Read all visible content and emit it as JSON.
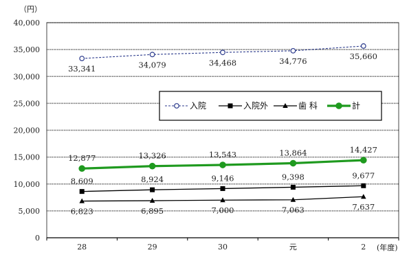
{
  "chart_data": {
    "type": "line",
    "unit_label": "（円）",
    "x_unit_label": "(年度)",
    "categories": [
      "28",
      "29",
      "30",
      "元",
      "2"
    ],
    "ylim": [
      0,
      40000
    ],
    "yticks": [
      0,
      5000,
      10000,
      15000,
      20000,
      25000,
      30000,
      35000,
      40000
    ],
    "ytick_labels": [
      "0",
      "5,000",
      "10,000",
      "15,000",
      "20,000",
      "25,000",
      "30,000",
      "35,000",
      "40,000"
    ],
    "grid": true,
    "legend_position": "right",
    "series": [
      {
        "key": "inpatient",
        "name": "入院",
        "values": [
          33341,
          34079,
          34468,
          34776,
          35660
        ],
        "labels": [
          "33,341",
          "34,079",
          "34,468",
          "34,776",
          "35,660"
        ],
        "label_position": "below",
        "color": "#2b3a8c",
        "marker": "circle-open",
        "style": "dashed"
      },
      {
        "key": "total",
        "name": "計",
        "values": [
          12877,
          13326,
          13543,
          13864,
          14427
        ],
        "labels": [
          "12,877",
          "13,326",
          "13,543",
          "13,864",
          "14,427"
        ],
        "label_position": "above",
        "color": "#1f9a1f",
        "marker": "circle-filled",
        "style": "thick"
      },
      {
        "key": "outpatient",
        "name": "入院外",
        "values": [
          8609,
          8924,
          9146,
          9398,
          9677
        ],
        "labels": [
          "8,609",
          "8,924",
          "9,146",
          "9,398",
          "9,677"
        ],
        "label_position": "above",
        "color": "#000000",
        "marker": "square",
        "style": "solid"
      },
      {
        "key": "dental",
        "name": "歯 科",
        "values": [
          6823,
          6895,
          7000,
          7063,
          7637
        ],
        "labels": [
          "6,823",
          "6,895",
          "7,000",
          "7,063",
          "7,637"
        ],
        "label_position": "below",
        "color": "#000000",
        "marker": "triangle",
        "style": "solid"
      }
    ],
    "legend_order": [
      "inpatient",
      "outpatient",
      "dental",
      "total"
    ]
  }
}
